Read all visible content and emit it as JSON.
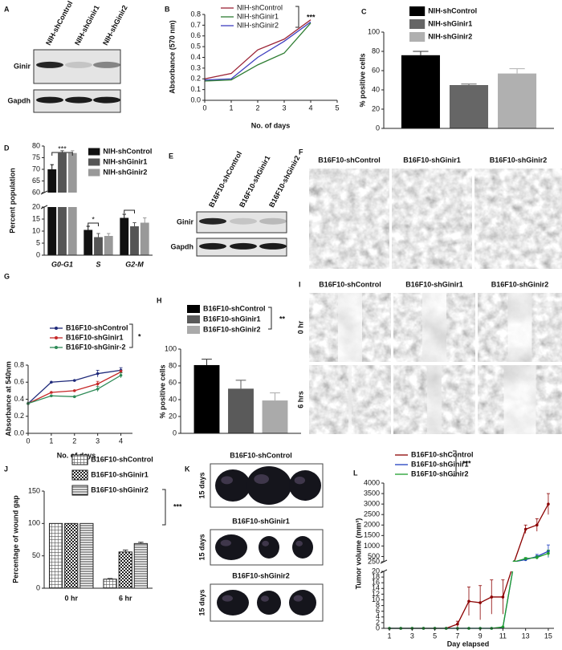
{
  "panels": {
    "A": {
      "label": "A",
      "lanes": [
        "NIH-shControl",
        "NIH-shGinir1",
        "NIH-shGinir2"
      ],
      "rows": [
        "Ginir",
        "Gapdh"
      ]
    },
    "E": {
      "label": "E",
      "lanes": [
        "B16F10-shControl",
        "B16F10-shGinir1",
        "B16F10-shGinir2"
      ],
      "rows": [
        "Ginir",
        "Gapdh"
      ]
    },
    "F": {
      "label": "F",
      "columns": [
        "B16F10-shControl",
        "B16F10-shGinir1",
        "B16F10-shGinir2"
      ]
    },
    "I": {
      "label": "I",
      "columns": [
        "B16F10-shControl",
        "B16F10-shGinir1",
        "B16F10-shGinir2"
      ],
      "rows": [
        "0 hr",
        "6 hrs"
      ]
    },
    "K": {
      "label": "K",
      "groups": [
        {
          "title": "B16F10-shControl",
          "time": "15 days"
        },
        {
          "title": "B16F10-shGinir1",
          "time": "15 days"
        },
        {
          "title": "B16F10-shGinir2",
          "time": "15 days"
        }
      ]
    }
  },
  "chart_data": [
    {
      "panel": "B",
      "type": "line",
      "xlabel": "No. of days",
      "ylabel": "Absorbance (570 nm)",
      "annotation": "***",
      "x": [
        0,
        1,
        2,
        3,
        4
      ],
      "xlim": [
        0,
        5
      ],
      "xticks": [
        0,
        1,
        2,
        3,
        4,
        5
      ],
      "ylim": [
        0,
        0.8
      ],
      "yticks": [
        {
          "value": 0,
          "label": "0.0"
        },
        0.1,
        0.2,
        0.3,
        0.4,
        0.5,
        0.6,
        0.7,
        0.8
      ],
      "markers": false,
      "series": [
        {
          "name": "NIH-shControl",
          "color": "#9b2335",
          "values": [
            0.2,
            0.25,
            0.47,
            0.57,
            0.75
          ]
        },
        {
          "name": "NIH-shGinir1",
          "color": "#2e7d32",
          "values": [
            0.18,
            0.19,
            0.33,
            0.44,
            0.72
          ]
        },
        {
          "name": "NIH-shGinir2",
          "color": "#3f3fbf",
          "values": [
            0.19,
            0.2,
            0.4,
            0.55,
            0.73
          ]
        }
      ]
    },
    {
      "panel": "C",
      "type": "bar",
      "ylabel": "% positive cells",
      "ylim": [
        0,
        100
      ],
      "yticks": [
        0,
        20,
        40,
        60,
        80,
        100
      ],
      "series": [
        {
          "name": "NIH-shControl",
          "color": "#000000",
          "values": [
            76
          ],
          "errors": [
            4
          ]
        },
        {
          "name": "NIH-shGinir1",
          "color": "#666666",
          "values": [
            45
          ],
          "errors": [
            1
          ]
        },
        {
          "name": "NIH-shGinir2",
          "color": "#b0b0b0",
          "values": [
            57
          ],
          "errors": [
            5
          ]
        }
      ]
    },
    {
      "panel": "D",
      "type": "bar",
      "ylabel": "Percent population",
      "categories": [
        "G0-G1",
        "S",
        "G2-M"
      ],
      "annotations": [
        "***",
        "*",
        "*"
      ],
      "ylim": [
        0,
        80
      ],
      "ybreak": [
        20,
        60
      ],
      "yticks": [
        0,
        5,
        10,
        15,
        20,
        60,
        65,
        70,
        75,
        80
      ],
      "series": [
        {
          "name": "NIH-shControl",
          "color": "#111111",
          "values": [
            70,
            10.5,
            15.5
          ],
          "errors": [
            2,
            1.5,
            1.5
          ]
        },
        {
          "name": "NIH-shGinir1",
          "color": "#555555",
          "values": [
            77,
            7.5,
            12
          ],
          "errors": [
            1,
            1.5,
            1.5
          ]
        },
        {
          "name": "NIH-shGinir2",
          "color": "#999999",
          "values": [
            77,
            8,
            13.5
          ],
          "errors": [
            1,
            1,
            2
          ]
        }
      ]
    },
    {
      "panel": "G",
      "type": "line",
      "xlabel": "No. of days",
      "ylabel": "Absorbance at 540nm",
      "annotation": "*",
      "x": [
        0,
        1,
        2,
        3,
        4
      ],
      "xlim": [
        0,
        4.5
      ],
      "xticks": [
        0,
        1,
        2,
        3,
        4
      ],
      "ylim": [
        0,
        0.8
      ],
      "yticks": [
        {
          "value": 0,
          "label": "0.0"
        },
        0.2,
        0.4,
        0.6,
        0.8
      ],
      "markers": true,
      "series": [
        {
          "name": "B16F10-shControl",
          "color": "#1f2a7a",
          "values": [
            0.35,
            0.6,
            0.62,
            0.7,
            0.74
          ],
          "errors": [
            null,
            null,
            null,
            0.04,
            0.03
          ]
        },
        {
          "name": "B16F10-shGinir1",
          "color": "#c62828",
          "values": [
            0.35,
            0.48,
            0.5,
            0.58,
            0.72
          ],
          "errors": [
            null,
            null,
            null,
            0.03,
            0.02
          ]
        },
        {
          "name": "B16F10-shGinir-2",
          "color": "#2e8b57",
          "values": [
            0.35,
            0.44,
            0.43,
            0.52,
            0.68
          ],
          "errors": [
            null,
            null,
            null,
            0.03,
            0.03
          ]
        }
      ]
    },
    {
      "panel": "H",
      "type": "bar",
      "ylabel": "% positive cells",
      "annotation": "**",
      "ylim": [
        0,
        100
      ],
      "yticks": [
        0,
        20,
        40,
        60,
        80,
        100
      ],
      "series": [
        {
          "name": "B16F10-shControl",
          "color": "#000000",
          "values": [
            81
          ],
          "errors": [
            7
          ]
        },
        {
          "name": "B16F10-shGinir1",
          "color": "#5a5a5a",
          "values": [
            53
          ],
          "errors": [
            10
          ]
        },
        {
          "name": "B16F10-shGinir2",
          "color": "#aaaaaa",
          "values": [
            39
          ],
          "errors": [
            9
          ]
        }
      ]
    },
    {
      "panel": "J",
      "type": "bar",
      "ylabel": "Percentage of wound gap",
      "annotation": "***",
      "categories": [
        "0 hr",
        "6 hr"
      ],
      "ylim": [
        0,
        150
      ],
      "yticks": [
        0,
        50,
        100,
        150
      ],
      "series": [
        {
          "name": "B16F10-shControl",
          "pattern": "grid",
          "values": [
            100,
            14
          ],
          "errors": [
            null,
            1
          ]
        },
        {
          "name": "B16F10-shGinir1",
          "pattern": "checker",
          "values": [
            100,
            56
          ],
          "errors": [
            null,
            3
          ]
        },
        {
          "name": "B16F10-shGinir2",
          "pattern": "stripes",
          "values": [
            100,
            69
          ],
          "errors": [
            null,
            2
          ]
        }
      ]
    },
    {
      "panel": "L",
      "type": "line",
      "xlabel": "Day elapsed",
      "ylabel": "Tumor volume (mm³)",
      "annotation": "***",
      "x": [
        1,
        2,
        3,
        4,
        5,
        6,
        7,
        8,
        9,
        10,
        11,
        12,
        13,
        14,
        15
      ],
      "xlim": [
        0.5,
        15.5
      ],
      "xticks": [
        1,
        3,
        5,
        7,
        9,
        11,
        13,
        15
      ],
      "ylim": [
        0,
        4000
      ],
      "ybreak": [
        20,
        250
      ],
      "yticks": [
        0,
        2,
        4,
        6,
        8,
        10,
        12,
        14,
        16,
        18,
        20,
        250,
        500,
        1000,
        1500,
        2000,
        2500,
        3000,
        3500,
        4000
      ],
      "markers": true,
      "series": [
        {
          "name": "B16F10-shControl",
          "color": "#8b0000",
          "values": [
            0,
            0,
            0,
            0,
            0,
            0,
            1.5,
            9.5,
            9,
            11,
            11,
            250,
            1800,
            2000,
            3000
          ],
          "errors": [
            null,
            null,
            null,
            null,
            null,
            null,
            1,
            5,
            6,
            6,
            6,
            null,
            200,
            300,
            500
          ]
        },
        {
          "name": "B16F10-shGinir1",
          "color": "#1f3fbf",
          "values": [
            0,
            0,
            0,
            0,
            0,
            0,
            0,
            0,
            0,
            0,
            0.3,
            250,
            350,
            500,
            750
          ],
          "errors": [
            null,
            null,
            null,
            null,
            null,
            null,
            null,
            null,
            null,
            null,
            null,
            null,
            60,
            100,
            300
          ]
        },
        {
          "name": "B16F10-shGinir2",
          "color": "#1e9e2e",
          "values": [
            0,
            0,
            0,
            0,
            0,
            0,
            0,
            0,
            0,
            0,
            0.5,
            250,
            400,
            450,
            650
          ],
          "errors": [
            null,
            null,
            null,
            null,
            null,
            null,
            null,
            null,
            null,
            null,
            null,
            null,
            50,
            80,
            150
          ]
        }
      ]
    }
  ]
}
